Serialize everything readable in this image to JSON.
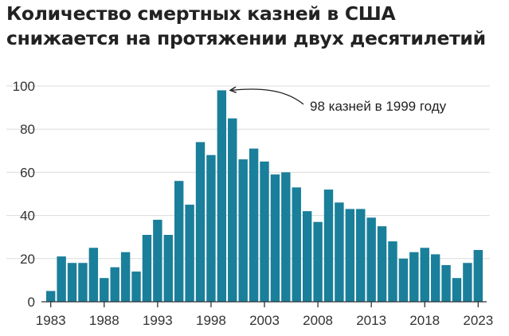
{
  "chart_data": {
    "type": "bar",
    "title_lines": [
      "Количество смертных казней в США",
      "снижается на протяжении двух десятилетий"
    ],
    "bar_color": "#1a7f9a",
    "x": [
      1983,
      1984,
      1985,
      1986,
      1987,
      1988,
      1989,
      1990,
      1991,
      1992,
      1993,
      1994,
      1995,
      1996,
      1997,
      1998,
      1999,
      2000,
      2001,
      2002,
      2003,
      2004,
      2005,
      2006,
      2007,
      2008,
      2009,
      2010,
      2011,
      2012,
      2013,
      2014,
      2015,
      2016,
      2017,
      2018,
      2019,
      2020,
      2021,
      2022,
      2023
    ],
    "values": [
      5,
      21,
      18,
      18,
      25,
      11,
      16,
      23,
      14,
      31,
      38,
      31,
      56,
      45,
      74,
      68,
      98,
      85,
      66,
      71,
      65,
      59,
      60,
      53,
      42,
      37,
      52,
      46,
      43,
      43,
      39,
      35,
      28,
      20,
      23,
      25,
      22,
      17,
      11,
      18,
      24
    ],
    "ylim": [
      0,
      100
    ],
    "y_ticks": [
      0,
      20,
      40,
      60,
      80,
      100
    ],
    "x_ticks": [
      1983,
      1988,
      1993,
      1998,
      2003,
      2008,
      2013,
      2018,
      2023
    ],
    "grid": "horizontal",
    "annotation": {
      "text": "98 казней в 1999 году",
      "x": 1999,
      "y": 98
    }
  }
}
